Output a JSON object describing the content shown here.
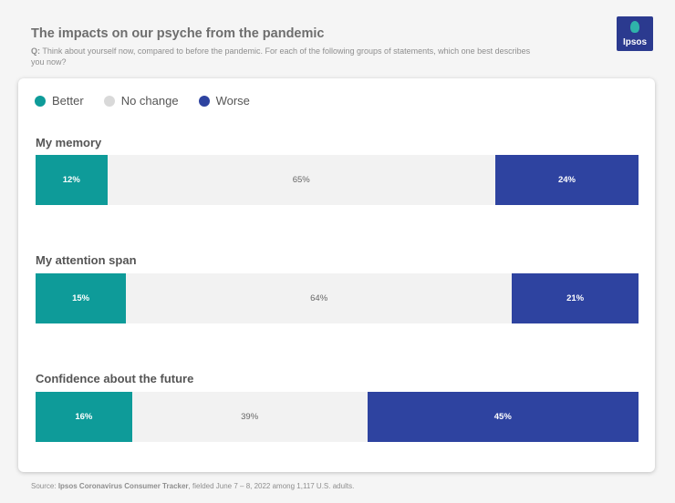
{
  "header": {
    "title": "The impacts on our psyche from the pandemic",
    "question_prefix": "Q:",
    "question_text": "Think about yourself now, compared to before the pandemic. For each of the following groups of statements, which one best describes you now?"
  },
  "logo": {
    "text": "Ipsos"
  },
  "colors": {
    "better": "#0e9b99",
    "no_change": "#f2f2f2",
    "worse": "#2e43a0"
  },
  "chart_data": {
    "type": "bar",
    "orientation": "horizontal-stacked-100",
    "legend": {
      "placement": "top-left",
      "entries": [
        "Better",
        "No change",
        "Worse"
      ]
    },
    "categories": [
      "My memory",
      "My attention span",
      "Confidence about the future"
    ],
    "series": [
      {
        "name": "Better",
        "values": [
          12,
          15,
          16
        ]
      },
      {
        "name": "No change",
        "values": [
          65,
          64,
          39
        ]
      },
      {
        "name": "Worse",
        "values": [
          24,
          21,
          45
        ]
      }
    ],
    "data_labels": [
      [
        "12%",
        "65%",
        "24%"
      ],
      [
        "15%",
        "64%",
        "21%"
      ],
      [
        "16%",
        "39%",
        "45%"
      ]
    ],
    "grid": false
  },
  "footer": {
    "source_prefix": "Source:",
    "source_name": "Ipsos Coronavirus Consumer Tracker",
    "source_rest": ", fielded June 7 – 8, 2022 among 1,117 U.S. adults."
  }
}
